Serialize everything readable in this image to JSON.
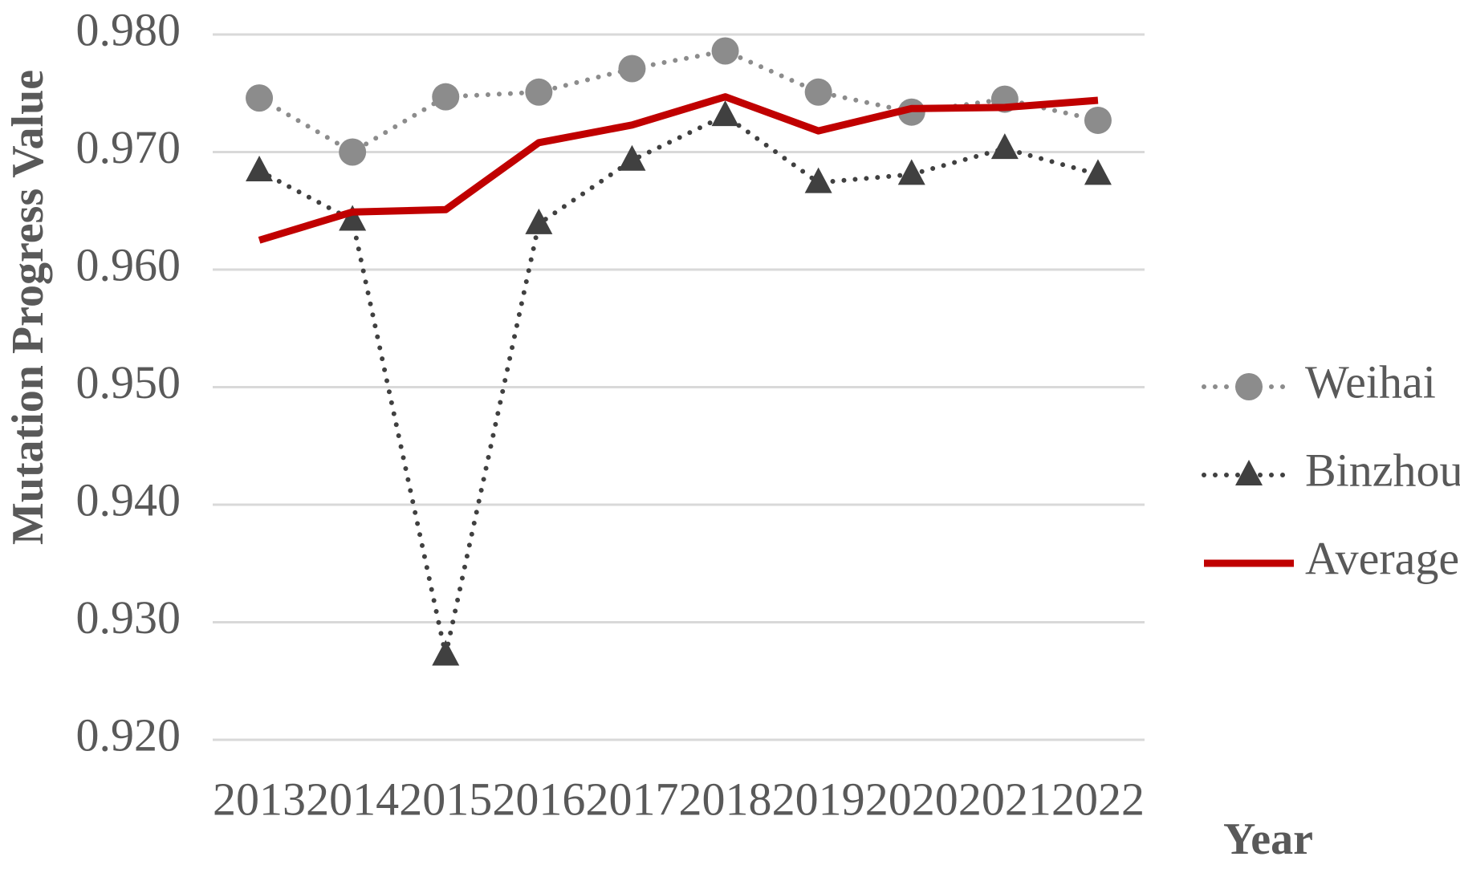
{
  "chart_data": {
    "type": "line",
    "y_label": "Mutation Progress Value",
    "x_label": "Year",
    "categories": [
      "2013",
      "2014",
      "2015",
      "2016",
      "2017",
      "2018",
      "2019",
      "2020",
      "2021",
      "2022"
    ],
    "series": [
      {
        "name": "Weihai",
        "color": "#8c8c8c",
        "marker": "circle",
        "line_style": "dotted",
        "values": [
          0.9746,
          0.97,
          0.9747,
          0.9751,
          0.9771,
          0.9786,
          0.9751,
          0.9734,
          0.9745,
          0.9727
        ]
      },
      {
        "name": "Binzhou",
        "color": "#404040",
        "marker": "triangle",
        "line_style": "dotted",
        "values": [
          0.9684,
          0.9642,
          0.9272,
          0.9639,
          0.9693,
          0.9731,
          0.9674,
          0.9681,
          0.9703,
          0.9681
        ]
      },
      {
        "name": "Average",
        "color": "#c00000",
        "marker": "none",
        "line_style": "solid",
        "values": [
          0.9625,
          0.9649,
          0.9651,
          0.9708,
          0.9723,
          0.9747,
          0.9718,
          0.9737,
          0.9738,
          0.9744
        ]
      }
    ],
    "ylim": [
      0.92,
      0.98
    ],
    "yticks": [
      {
        "value": 0.92,
        "label": "0.920"
      },
      {
        "value": 0.93,
        "label": "0.930"
      },
      {
        "value": 0.94,
        "label": "0.940"
      },
      {
        "value": 0.95,
        "label": "0.950"
      },
      {
        "value": 0.96,
        "label": "0.960"
      },
      {
        "value": 0.97,
        "label": "0.970"
      },
      {
        "value": 0.98,
        "label": "0.980"
      }
    ],
    "grid": true,
    "legend": "right"
  }
}
